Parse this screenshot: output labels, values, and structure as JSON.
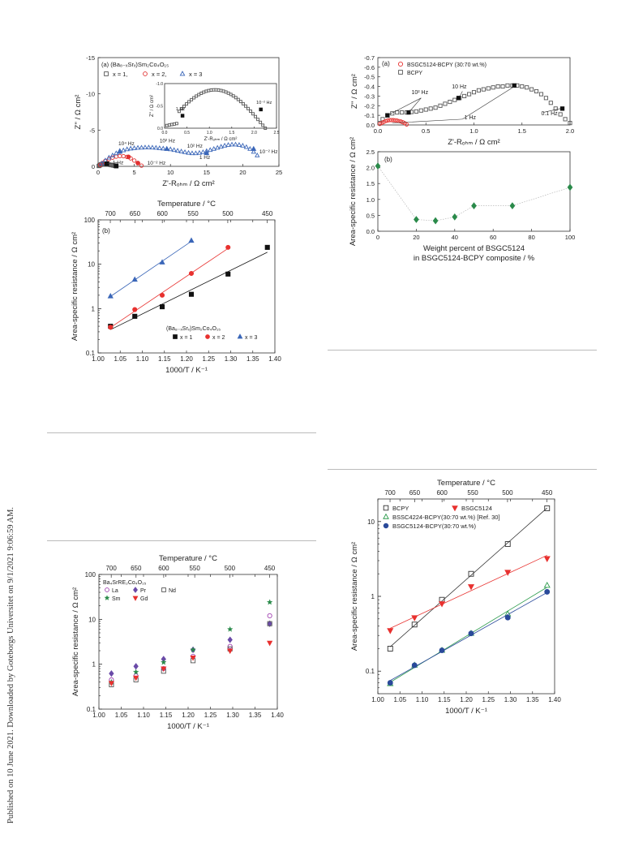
{
  "sidebar": {
    "text": "Published on 10 June 2021. Downloaded by Goteborgs Universitet on 9/1/2021 9:06:59 AM."
  },
  "chart_data": [
    {
      "id": "fig_a_left",
      "type": "scatter",
      "panel": "(a)",
      "legend_title": "(Ba₈₋ₓSrₓ)Sm₂Co₄O₁₅",
      "legend": [
        "x = 1,",
        "x = 2,",
        "x = 3"
      ],
      "xlabel": "Z'-Rₒₕₘ / Ω cm²",
      "ylabel": "Z'' / Ω cm²",
      "xlim": [
        0,
        25
      ],
      "ylim": [
        0,
        -15
      ],
      "xticks": [
        "0",
        "5",
        "10",
        "15",
        "20",
        "25"
      ],
      "yticks": [
        "0",
        "-5",
        "-10",
        "-15"
      ],
      "series": [
        {
          "name": "x = 1",
          "color": "#555555",
          "x": [
            0.1,
            0.2,
            0.3,
            0.4,
            0.5,
            0.6,
            0.7,
            0.8,
            0.9,
            1.0,
            1.1,
            1.2,
            1.3,
            1.5,
            1.7,
            1.9,
            2.1,
            2.3,
            2.5
          ],
          "y": [
            -0.05,
            -0.12,
            -0.2,
            -0.26,
            -0.3,
            -0.33,
            -0.35,
            -0.36,
            -0.36,
            -0.35,
            -0.33,
            -0.3,
            -0.28,
            -0.24,
            -0.2,
            -0.16,
            -0.12,
            -0.08,
            -0.04
          ]
        },
        {
          "name": "x = 2",
          "color": "#e03030",
          "x": [
            0.3,
            0.6,
            1.0,
            1.5,
            2.0,
            2.5,
            3.0,
            3.5,
            4.0,
            4.5,
            5.0,
            5.5,
            6.0
          ],
          "y": [
            -0.2,
            -0.45,
            -0.75,
            -1.0,
            -1.2,
            -1.35,
            -1.42,
            -1.4,
            -1.3,
            -1.1,
            -0.8,
            -0.45,
            -0.1
          ]
        },
        {
          "name": "x = 3",
          "color": "#3a66b8",
          "x": [
            0.5,
            1,
            1.5,
            2,
            2.5,
            3,
            3.5,
            4,
            4.5,
            5,
            5.5,
            6,
            6.5,
            7,
            7.5,
            8,
            8.5,
            9,
            9.5,
            10,
            10.5,
            11,
            11.5,
            12,
            12.5,
            13,
            13.5,
            14,
            14.5,
            15,
            15.5,
            16,
            16.5,
            17,
            17.5,
            18,
            18.5,
            19,
            19.5,
            20,
            20.5,
            21,
            21.5,
            22
          ],
          "y": [
            -0.4,
            -0.8,
            -1.2,
            -1.5,
            -1.8,
            -2.0,
            -2.2,
            -2.35,
            -2.45,
            -2.5,
            -2.55,
            -2.57,
            -2.6,
            -2.6,
            -2.58,
            -2.55,
            -2.5,
            -2.45,
            -2.4,
            -2.35,
            -2.25,
            -2.15,
            -2.05,
            -1.95,
            -1.85,
            -1.8,
            -1.8,
            -1.85,
            -1.95,
            -2.1,
            -2.25,
            -2.4,
            -2.55,
            -2.7,
            -2.85,
            -2.95,
            -3.0,
            -3.0,
            -2.95,
            -2.85,
            -2.65,
            -2.4,
            -2.0,
            -1.5
          ]
        }
      ],
      "annotations": [
        "10⁴ Hz",
        "10² Hz",
        "1 Hz",
        "10⁻² Hz",
        "10² Hz",
        "1 Hz",
        "10⁻² Hz"
      ],
      "inset": {
        "xlabel": "Z'-Rₒₕₘ / Ω cm²",
        "ylabel": "Z'' / Ω cm²",
        "xticks": [
          "0.0",
          "0.5",
          "1.0",
          "1.5",
          "2.0",
          "2.5"
        ],
        "yticks": [
          "0.0",
          "-0.5",
          "-1.0"
        ],
        "annotations": [
          "1 Hz",
          "10⁻² Hz"
        ]
      }
    },
    {
      "id": "fig_b_left",
      "type": "scatter",
      "panel": "(b)",
      "xlabel": "1000/T / K⁻¹",
      "ylabel": "Area-specific resistance / Ω cm²",
      "top_label": "Temperature / °C",
      "top_ticks": [
        "700",
        "650",
        "600",
        "550",
        "500",
        "450"
      ],
      "xlim": [
        1.0,
        1.4
      ],
      "ylim": [
        0.1,
        100
      ],
      "yscale": "log",
      "xticks": [
        "1.00",
        "1.05",
        "1.10",
        "1.15",
        "1.20",
        "1.25",
        "1.30",
        "1.35",
        "1.40"
      ],
      "yticks": [
        "0.1",
        "1",
        "10",
        "100"
      ],
      "legend_title": "(Ba₈₋ₓSrₓ)Sm₂Co₄O₁₅",
      "series": [
        {
          "name": "x = 1",
          "color": "#111111",
          "x": [
            1.028,
            1.083,
            1.145,
            1.211,
            1.294,
            1.383
          ],
          "y": [
            0.4,
            0.67,
            1.1,
            2.1,
            6.0,
            24
          ]
        },
        {
          "name": "x = 2",
          "color": "#e8312f",
          "x": [
            1.028,
            1.083,
            1.145,
            1.211,
            1.294
          ],
          "y": [
            0.38,
            0.95,
            2.0,
            6.2,
            24
          ]
        },
        {
          "name": "x = 3",
          "color": "#3a66b8",
          "x": [
            1.028,
            1.083,
            1.145,
            1.211
          ],
          "y": [
            1.9,
            4.5,
            11,
            34
          ]
        }
      ]
    },
    {
      "id": "fig_c_left",
      "type": "scatter",
      "xlabel": "1000/T / K⁻¹",
      "ylabel": "Area-specific resistance / Ω cm²",
      "top_label": "Temperature / °C",
      "top_ticks": [
        "700",
        "650",
        "600",
        "550",
        "500",
        "450"
      ],
      "xlim": [
        1.0,
        1.4
      ],
      "ylim": [
        0.1,
        100
      ],
      "yscale": "log",
      "xticks": [
        "1.00",
        "1.05",
        "1.10",
        "1.15",
        "1.20",
        "1.25",
        "1.30",
        "1.35",
        "1.40"
      ],
      "yticks": [
        "0.1",
        "1",
        "10",
        "100"
      ],
      "legend_title": "Ba₄SrRE₂Co₄O₁₅",
      "series": [
        {
          "name": "La",
          "color": "#a040b0",
          "x": [
            1.028,
            1.083,
            1.145,
            1.211,
            1.294,
            1.383
          ],
          "y": [
            0.45,
            0.55,
            0.8,
            1.5,
            2.5,
            12
          ]
        },
        {
          "name": "Pr",
          "color": "#6a4aa8",
          "x": [
            1.028,
            1.083,
            1.145,
            1.211,
            1.294,
            1.383
          ],
          "y": [
            0.62,
            0.9,
            1.3,
            2.1,
            3.5,
            8
          ]
        },
        {
          "name": "Nd",
          "color": "#555555",
          "x": [
            1.028,
            1.083,
            1.145,
            1.211,
            1.294,
            1.383
          ],
          "y": [
            0.35,
            0.45,
            0.7,
            1.2,
            2.2,
            8
          ]
        },
        {
          "name": "Sm",
          "color": "#2a8a4a",
          "x": [
            1.028,
            1.083,
            1.145,
            1.211,
            1.294,
            1.383
          ],
          "y": [
            0.4,
            0.67,
            1.1,
            2.1,
            6.0,
            24
          ]
        },
        {
          "name": "Gd",
          "color": "#e8312f",
          "x": [
            1.028,
            1.083,
            1.145,
            1.211,
            1.294,
            1.383
          ],
          "y": [
            0.38,
            0.5,
            0.8,
            1.4,
            2.0,
            3.0
          ]
        }
      ]
    },
    {
      "id": "fig_a_right",
      "type": "scatter",
      "panel": "(a)",
      "xlabel": "Z'-Rₒₕₘ / Ω cm²",
      "ylabel": "Z'' / Ω cm²",
      "xlim": [
        0,
        2.0
      ],
      "ylim": [
        0,
        -0.7
      ],
      "xticks": [
        "0.0",
        "0.5",
        "1.0",
        "1.5",
        "2.0"
      ],
      "yticks": [
        "0.0",
        "-0.1",
        "-0.2",
        "-0.3",
        "-0.4",
        "-0.5",
        "-0.6",
        "-0.7"
      ],
      "series": [
        {
          "name": "BSGC5124-BCPY (30:70 wt.%)",
          "color": "#e8312f",
          "x": [
            0.02,
            0.04,
            0.06,
            0.08,
            0.1,
            0.12,
            0.14,
            0.16,
            0.18,
            0.2,
            0.22,
            0.24,
            0.26,
            0.28,
            0.3
          ],
          "y": [
            -0.01,
            -0.02,
            -0.03,
            -0.04,
            -0.045,
            -0.05,
            -0.05,
            -0.05,
            -0.048,
            -0.045,
            -0.04,
            -0.035,
            -0.028,
            -0.018,
            -0.005
          ]
        },
        {
          "name": "BCPY",
          "color": "#555555",
          "x": [
            0.02,
            0.05,
            0.1,
            0.15,
            0.2,
            0.25,
            0.3,
            0.35,
            0.4,
            0.45,
            0.5,
            0.55,
            0.6,
            0.65,
            0.7,
            0.75,
            0.8,
            0.85,
            0.9,
            0.95,
            1.0,
            1.05,
            1.1,
            1.15,
            1.2,
            1.25,
            1.3,
            1.35,
            1.4,
            1.45,
            1.5,
            1.55,
            1.6,
            1.65,
            1.7,
            1.75,
            1.8,
            1.85,
            1.9,
            1.95,
            2.0
          ],
          "y": [
            -0.02,
            -0.06,
            -0.1,
            -0.12,
            -0.13,
            -0.13,
            -0.13,
            -0.135,
            -0.14,
            -0.15,
            -0.16,
            -0.17,
            -0.18,
            -0.2,
            -0.22,
            -0.24,
            -0.26,
            -0.28,
            -0.3,
            -0.32,
            -0.34,
            -0.36,
            -0.37,
            -0.38,
            -0.39,
            -0.4,
            -0.4,
            -0.41,
            -0.41,
            -0.41,
            -0.4,
            -0.39,
            -0.37,
            -0.35,
            -0.32,
            -0.28,
            -0.23,
            -0.17,
            -0.11,
            -0.06,
            -0.02
          ]
        }
      ],
      "annotations": [
        "10² Hz",
        "10 Hz",
        "1 Hz",
        "0.1 Hz"
      ]
    },
    {
      "id": "fig_b_right",
      "type": "line",
      "panel": "(b)",
      "xlabel": "Weight percent of BSGC5124 in BSGC5124-BCPY composite / %",
      "xlabel_line1": "Weight percent of BSGC5124",
      "xlabel_line2": "in BSGC5124-BCPY composite / %",
      "ylabel": "Area-specific resistance / Ω cm²",
      "xlim": [
        0,
        100
      ],
      "ylim": [
        0,
        2.5
      ],
      "xticks": [
        "0",
        "20",
        "40",
        "60",
        "80",
        "100"
      ],
      "yticks": [
        "0.0",
        "0.5",
        "1.0",
        "1.5",
        "2.0",
        "2.5"
      ],
      "series": [
        {
          "name": "",
          "color": "#2a8a4a",
          "x": [
            0,
            20,
            30,
            40,
            50,
            70,
            100
          ],
          "y": [
            2.05,
            0.37,
            0.33,
            0.45,
            0.8,
            0.8,
            1.38
          ]
        }
      ]
    },
    {
      "id": "fig_c_right",
      "type": "scatter",
      "xlabel": "1000/T / K⁻¹",
      "ylabel": "Area-specific resistance / Ω cm²",
      "top_label": "Temperature / °C",
      "top_ticks": [
        "700",
        "650",
        "600",
        "550",
        "500",
        "450"
      ],
      "xlim": [
        1.0,
        1.4
      ],
      "ylim": [
        0.05,
        20
      ],
      "yscale": "log",
      "xticks": [
        "1.00",
        "1.05",
        "1.10",
        "1.15",
        "1.20",
        "1.25",
        "1.30",
        "1.35",
        "1.40"
      ],
      "yticks": [
        "0.1",
        "1",
        "10"
      ],
      "series": [
        {
          "name": "BCPY",
          "color": "#333333",
          "x": [
            1.028,
            1.083,
            1.145,
            1.211,
            1.294,
            1.383
          ],
          "y": [
            0.2,
            0.42,
            0.9,
            2.0,
            5.0,
            15
          ]
        },
        {
          "name": "BSGC5124",
          "color": "#e8312f",
          "x": [
            1.028,
            1.083,
            1.145,
            1.211,
            1.294,
            1.383
          ],
          "y": [
            0.35,
            0.52,
            0.8,
            1.35,
            2.1,
            3.2
          ]
        },
        {
          "name": "BSSC4224-BCPY(30:70 wt.%) [Ref. 30]",
          "color": "#2a9a4a",
          "x": [
            1.028,
            1.083,
            1.145,
            1.211,
            1.294,
            1.383
          ],
          "y": [
            0.068,
            0.12,
            0.19,
            0.32,
            0.58,
            1.4
          ]
        },
        {
          "name": "BSGC5124-BCPY(30:70 wt.%)",
          "color": "#2a4a9a",
          "x": [
            1.028,
            1.083,
            1.145,
            1.211,
            1.294,
            1.383
          ],
          "y": [
            0.07,
            0.12,
            0.19,
            0.32,
            0.52,
            1.15
          ]
        }
      ]
    }
  ]
}
